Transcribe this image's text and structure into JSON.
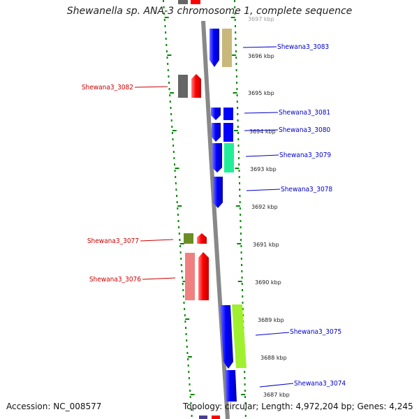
{
  "title": "Shewanella sp. ANA-3 chromosome 1, complete sequence",
  "footer": {
    "accession": "Accession: NC_008577",
    "topology": "Topology: circular; Length: 4,972,204 bp; Genes: 4,245"
  },
  "colors": {
    "forward_label": "#0000cc",
    "reverse_label": "#cc0000",
    "ruler": "#008800",
    "backbone": "#888888"
  },
  "kbp_ticks": [
    "3697 kbp",
    "3696 kbp",
    "3695 kbp",
    "3694 kbp",
    "3693 kbp",
    "3692 kbp",
    "3691 kbp",
    "3690 kbp",
    "3689 kbp",
    "3688 kbp",
    "3687 kbp"
  ],
  "genes": [
    {
      "label": "Shewana3_3083",
      "strand": "forward",
      "color": "#0000ff",
      "cog_color": "#c8b87a"
    },
    {
      "label": "Shewana3_3082",
      "strand": "reverse",
      "color": "#ff0000",
      "cog_color": "#666666"
    },
    {
      "label": "Shewana3_3081",
      "strand": "forward",
      "color": "#0000ff",
      "cog_color": "#0000ff"
    },
    {
      "label": "Shewana3_3080",
      "strand": "forward",
      "color": "#0000ff",
      "cog_color": "#0000ff"
    },
    {
      "label": "Shewana3_3079",
      "strand": "forward",
      "color": "#0000ff",
      "cog_color": "#22ee99"
    },
    {
      "label": "Shewana3_3078",
      "strand": "forward",
      "color": "#0000ff",
      "cog_color": ""
    },
    {
      "label": "Shewana3_3077",
      "strand": "reverse",
      "color": "#ff0000",
      "cog_color": "#6b8e23"
    },
    {
      "label": "Shewana3_3076",
      "strand": "reverse",
      "color": "#ff0000",
      "cog_color": "#f08080"
    },
    {
      "label": "Shewana3_3075",
      "strand": "forward",
      "color": "#0000ff",
      "cog_color": "#a0f030"
    },
    {
      "label": "Shewana3_3074",
      "strand": "forward",
      "color": "#0000ff",
      "cog_color": ""
    }
  ]
}
